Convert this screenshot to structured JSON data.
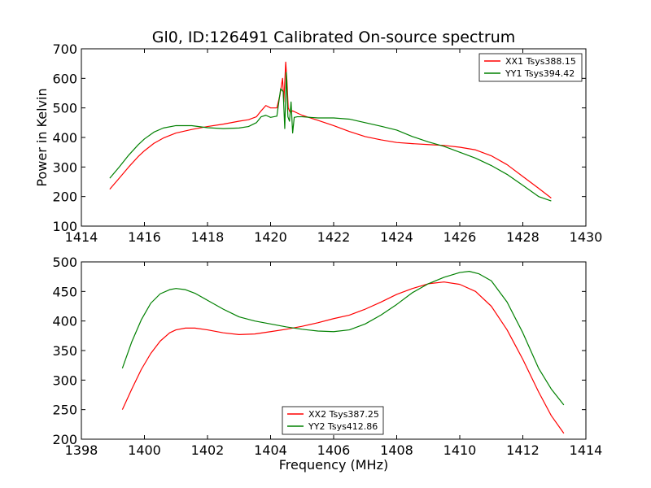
{
  "figure_title": "Gl0, ID:126491 Calibrated On-source spectrum",
  "xlabel": "Frequency (MHz)",
  "chart_data": [
    {
      "type": "line",
      "title": "Gl0, ID:126491 Calibrated On-source spectrum",
      "xlabel": "",
      "ylabel": "Power in Kelvin",
      "xlim": [
        1414,
        1430
      ],
      "ylim": [
        100,
        700
      ],
      "xticks": [
        1414,
        1416,
        1418,
        1420,
        1422,
        1424,
        1426,
        1428,
        1430
      ],
      "yticks": [
        100,
        200,
        300,
        400,
        500,
        600,
        700
      ],
      "grid": false,
      "legend_position": "top-right",
      "series": [
        {
          "name": "XX1 Tsys388.15",
          "color": "#ff0000",
          "x": [
            1414.9,
            1415.2,
            1415.5,
            1415.8,
            1416.0,
            1416.3,
            1416.6,
            1417.0,
            1417.5,
            1418.0,
            1418.5,
            1419.0,
            1419.3,
            1419.55,
            1419.7,
            1419.85,
            1420.0,
            1420.2,
            1420.3,
            1420.38,
            1420.42,
            1420.48,
            1420.52,
            1420.56,
            1420.62,
            1420.7,
            1420.8,
            1421.0,
            1421.5,
            1422.0,
            1422.5,
            1423.0,
            1423.5,
            1424.0,
            1424.5,
            1425.0,
            1425.5,
            1426.0,
            1426.5,
            1427.0,
            1427.5,
            1428.0,
            1428.5,
            1428.9
          ],
          "values": [
            225,
            262,
            300,
            335,
            355,
            380,
            398,
            415,
            427,
            437,
            445,
            455,
            460,
            470,
            490,
            508,
            500,
            500,
            545,
            600,
            520,
            655,
            590,
            500,
            485,
            490,
            485,
            475,
            458,
            440,
            420,
            403,
            392,
            383,
            379,
            376,
            373,
            367,
            358,
            338,
            308,
            268,
            228,
            195
          ]
        },
        {
          "name": "YY1 Tsys394.42",
          "color": "#008000",
          "x": [
            1414.9,
            1415.2,
            1415.5,
            1415.8,
            1416.0,
            1416.3,
            1416.6,
            1417.0,
            1417.5,
            1418.0,
            1418.5,
            1419.0,
            1419.3,
            1419.55,
            1419.7,
            1419.85,
            1420.0,
            1420.2,
            1420.32,
            1420.4,
            1420.45,
            1420.5,
            1420.55,
            1420.6,
            1420.65,
            1420.7,
            1420.75,
            1420.85,
            1421.0,
            1421.5,
            1422.0,
            1422.5,
            1423.0,
            1423.5,
            1424.0,
            1424.5,
            1425.0,
            1425.5,
            1426.0,
            1426.5,
            1427.0,
            1427.5,
            1428.0,
            1428.5,
            1428.9
          ],
          "values": [
            262,
            300,
            340,
            375,
            395,
            418,
            432,
            440,
            440,
            433,
            430,
            432,
            437,
            450,
            470,
            475,
            468,
            472,
            565,
            555,
            430,
            620,
            470,
            455,
            520,
            415,
            468,
            470,
            470,
            466,
            466,
            462,
            450,
            438,
            425,
            403,
            385,
            370,
            350,
            330,
            305,
            275,
            238,
            200,
            185
          ]
        }
      ]
    },
    {
      "type": "line",
      "title": "",
      "xlabel": "Frequency (MHz)",
      "ylabel": "",
      "xlim": [
        1398,
        1414
      ],
      "ylim": [
        200,
        500
      ],
      "xticks": [
        1398,
        1400,
        1402,
        1404,
        1406,
        1408,
        1410,
        1412,
        1414
      ],
      "yticks": [
        200,
        250,
        300,
        350,
        400,
        450,
        500
      ],
      "grid": false,
      "legend_position": "bottom-center",
      "series": [
        {
          "name": "XX2 Tsys387.25",
          "color": "#ff0000",
          "x": [
            1399.3,
            1399.6,
            1399.9,
            1400.2,
            1400.5,
            1400.8,
            1401.0,
            1401.3,
            1401.6,
            1402.0,
            1402.5,
            1403.0,
            1403.5,
            1404.0,
            1404.5,
            1405.0,
            1405.5,
            1406.0,
            1406.5,
            1407.0,
            1407.5,
            1408.0,
            1408.5,
            1409.0,
            1409.5,
            1410.0,
            1410.5,
            1411.0,
            1411.5,
            1412.0,
            1412.5,
            1412.9,
            1413.3
          ],
          "values": [
            250,
            285,
            318,
            345,
            366,
            380,
            385,
            388,
            388,
            385,
            380,
            377,
            378,
            382,
            386,
            391,
            397,
            404,
            410,
            420,
            432,
            445,
            455,
            463,
            466,
            462,
            450,
            425,
            385,
            335,
            280,
            240,
            210
          ]
        },
        {
          "name": "YY2 Tsys412.86",
          "color": "#008000",
          "x": [
            1399.3,
            1399.6,
            1399.9,
            1400.2,
            1400.5,
            1400.8,
            1401.0,
            1401.3,
            1401.6,
            1402.0,
            1402.5,
            1403.0,
            1403.5,
            1404.0,
            1404.5,
            1405.0,
            1405.5,
            1406.0,
            1406.5,
            1407.0,
            1407.5,
            1408.0,
            1408.5,
            1409.0,
            1409.5,
            1410.0,
            1410.3,
            1410.6,
            1411.0,
            1411.5,
            1412.0,
            1412.5,
            1412.9,
            1413.3
          ],
          "values": [
            320,
            365,
            402,
            430,
            446,
            453,
            455,
            453,
            447,
            435,
            420,
            407,
            400,
            395,
            390,
            386,
            383,
            382,
            385,
            395,
            410,
            428,
            448,
            463,
            474,
            482,
            484,
            480,
            468,
            432,
            380,
            320,
            285,
            258
          ]
        }
      ]
    }
  ]
}
